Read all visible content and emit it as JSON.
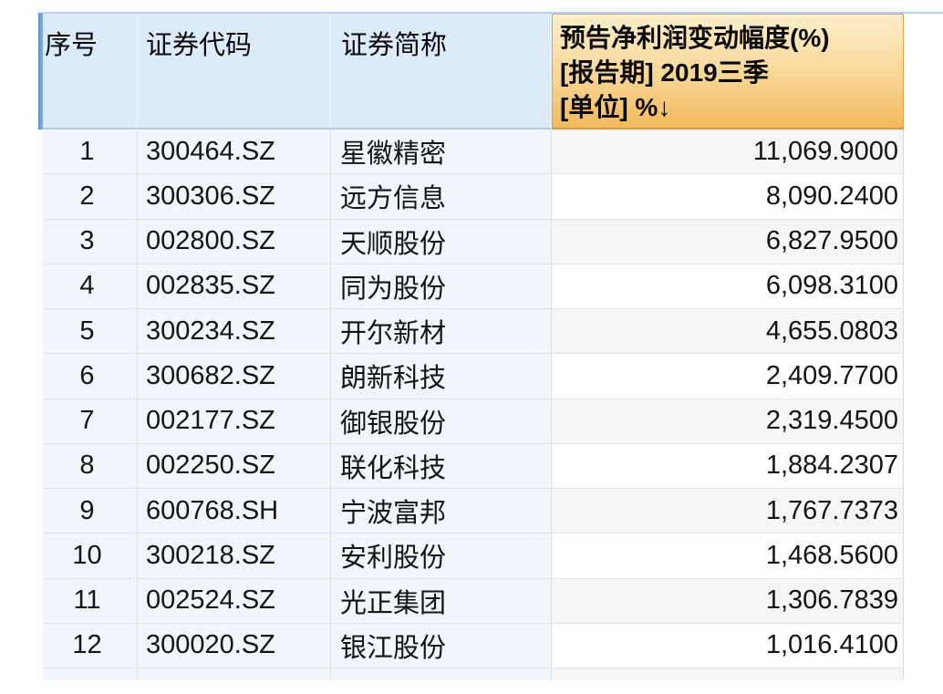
{
  "table": {
    "header": {
      "seq_label": "序号",
      "code_label": "证券代码",
      "name_label": "证券简称",
      "value_lines": [
        "预告净利润变动幅度(%)",
        "[报告期] 2019三季",
        "[单位] %↓"
      ],
      "sort_direction": "descending",
      "sort_arrow": "↓"
    },
    "rows": [
      {
        "seq": "1",
        "code": "300464.SZ",
        "name": "星徽精密",
        "value": "11,069.9000"
      },
      {
        "seq": "2",
        "code": "300306.SZ",
        "name": "远方信息",
        "value": "8,090.2400"
      },
      {
        "seq": "3",
        "code": "002800.SZ",
        "name": "天顺股份",
        "value": "6,827.9500"
      },
      {
        "seq": "4",
        "code": "002835.SZ",
        "name": "同为股份",
        "value": "6,098.3100"
      },
      {
        "seq": "5",
        "code": "300234.SZ",
        "name": "开尔新材",
        "value": "4,655.0803"
      },
      {
        "seq": "6",
        "code": "300682.SZ",
        "name": "朗新科技",
        "value": "2,409.7700"
      },
      {
        "seq": "7",
        "code": "002177.SZ",
        "name": "御银股份",
        "value": "2,319.4500"
      },
      {
        "seq": "8",
        "code": "002250.SZ",
        "name": "联化科技",
        "value": "1,884.2307"
      },
      {
        "seq": "9",
        "code": "600768.SH",
        "name": "宁波富邦",
        "value": "1,767.7373"
      },
      {
        "seq": "10",
        "code": "300218.SZ",
        "name": "安利股份",
        "value": "1,468.5600"
      },
      {
        "seq": "11",
        "code": "002524.SZ",
        "name": "光正集团",
        "value": "1,306.7839"
      },
      {
        "seq": "12",
        "code": "300020.SZ",
        "name": "银江股份",
        "value": "1,016.4100"
      }
    ],
    "colors": {
      "sorted_header_gradient_top": "#fdeecb",
      "sorted_header_gradient_bottom": "#f2b95e",
      "sorted_header_border": "#e2a148",
      "header_bg": "#dcebfa",
      "header_bottom_border": "#aecdec",
      "left_columns_row_bg": "#f0f6fc",
      "value_cell_odd_bg": "#f6f6f6",
      "value_cell_even_bg": "#ffffff",
      "accent_bar_blue": "#5a90c8",
      "table_top_line": "#b6d3f0",
      "row_separator": "#e3e3e3",
      "text": "#141414"
    }
  }
}
